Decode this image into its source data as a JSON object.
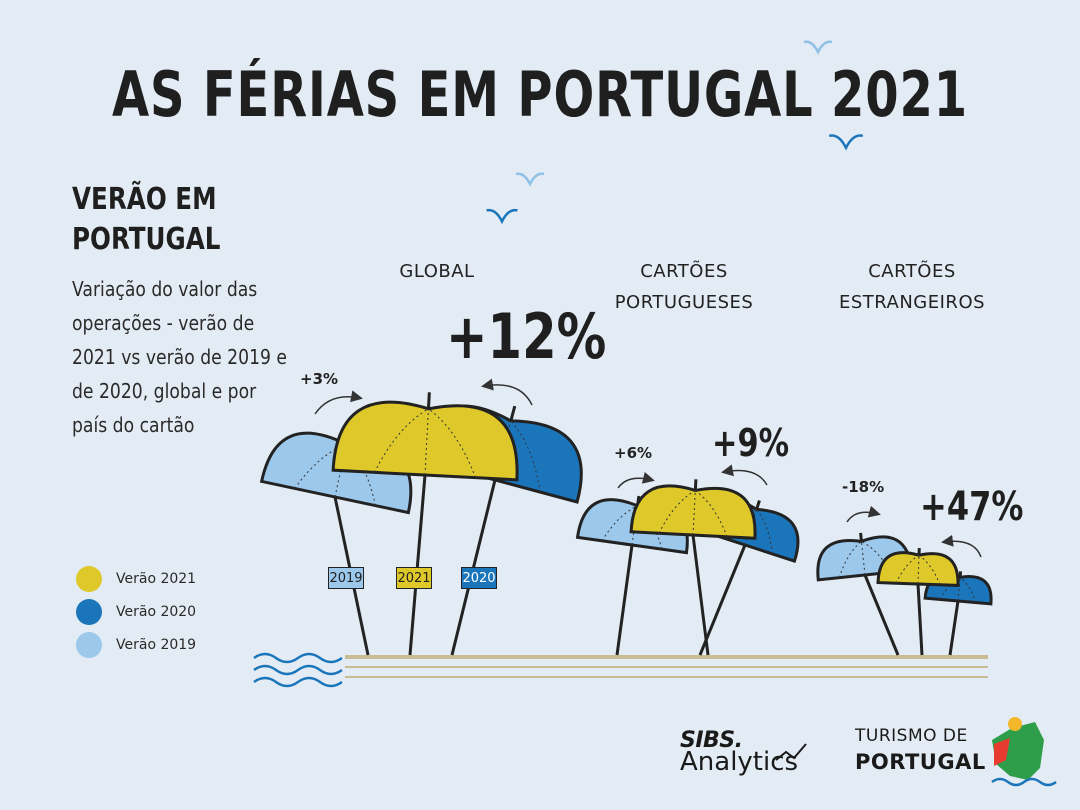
{
  "title": "AS FÉRIAS EM PORTUGAL 2021",
  "subtitle": "VERÃO EM PORTUGAL",
  "description": "Variação do valor das operações - verão de 2021 vs verão de 2019 e de 2020, global e por país do cartão",
  "legend": [
    {
      "label": "Verão 2021",
      "color": "#dfc82a"
    },
    {
      "label": "Verão 2020",
      "color": "#1b75bb"
    },
    {
      "label": "Verão 2019",
      "color": "#9cc8ec"
    }
  ],
  "year_tags": [
    "2019",
    "2021",
    "2020"
  ],
  "chart_data": {
    "type": "other",
    "metric": "Variação do valor das operações",
    "groups": [
      {
        "name": "GLOBAL",
        "vs_2019": "+3%",
        "vs_2020": "+12%",
        "vs_2019_value": 3,
        "vs_2020_value": 12
      },
      {
        "name": "CARTÕES PORTUGUESES",
        "vs_2019": "+6%",
        "vs_2020": "+9%",
        "vs_2019_value": 6,
        "vs_2020_value": 9
      },
      {
        "name": "CARTÕES ESTRANGEIROS",
        "vs_2019": "-18%",
        "vs_2020": "+47%",
        "vs_2019_value": -18,
        "vs_2020_value": 47
      }
    ]
  },
  "logos": {
    "sibs": "SIBS.",
    "sibs_sub": "Analytics",
    "turismo_top": "TURISMO DE",
    "turismo_bottom": "PORTUGAL"
  }
}
